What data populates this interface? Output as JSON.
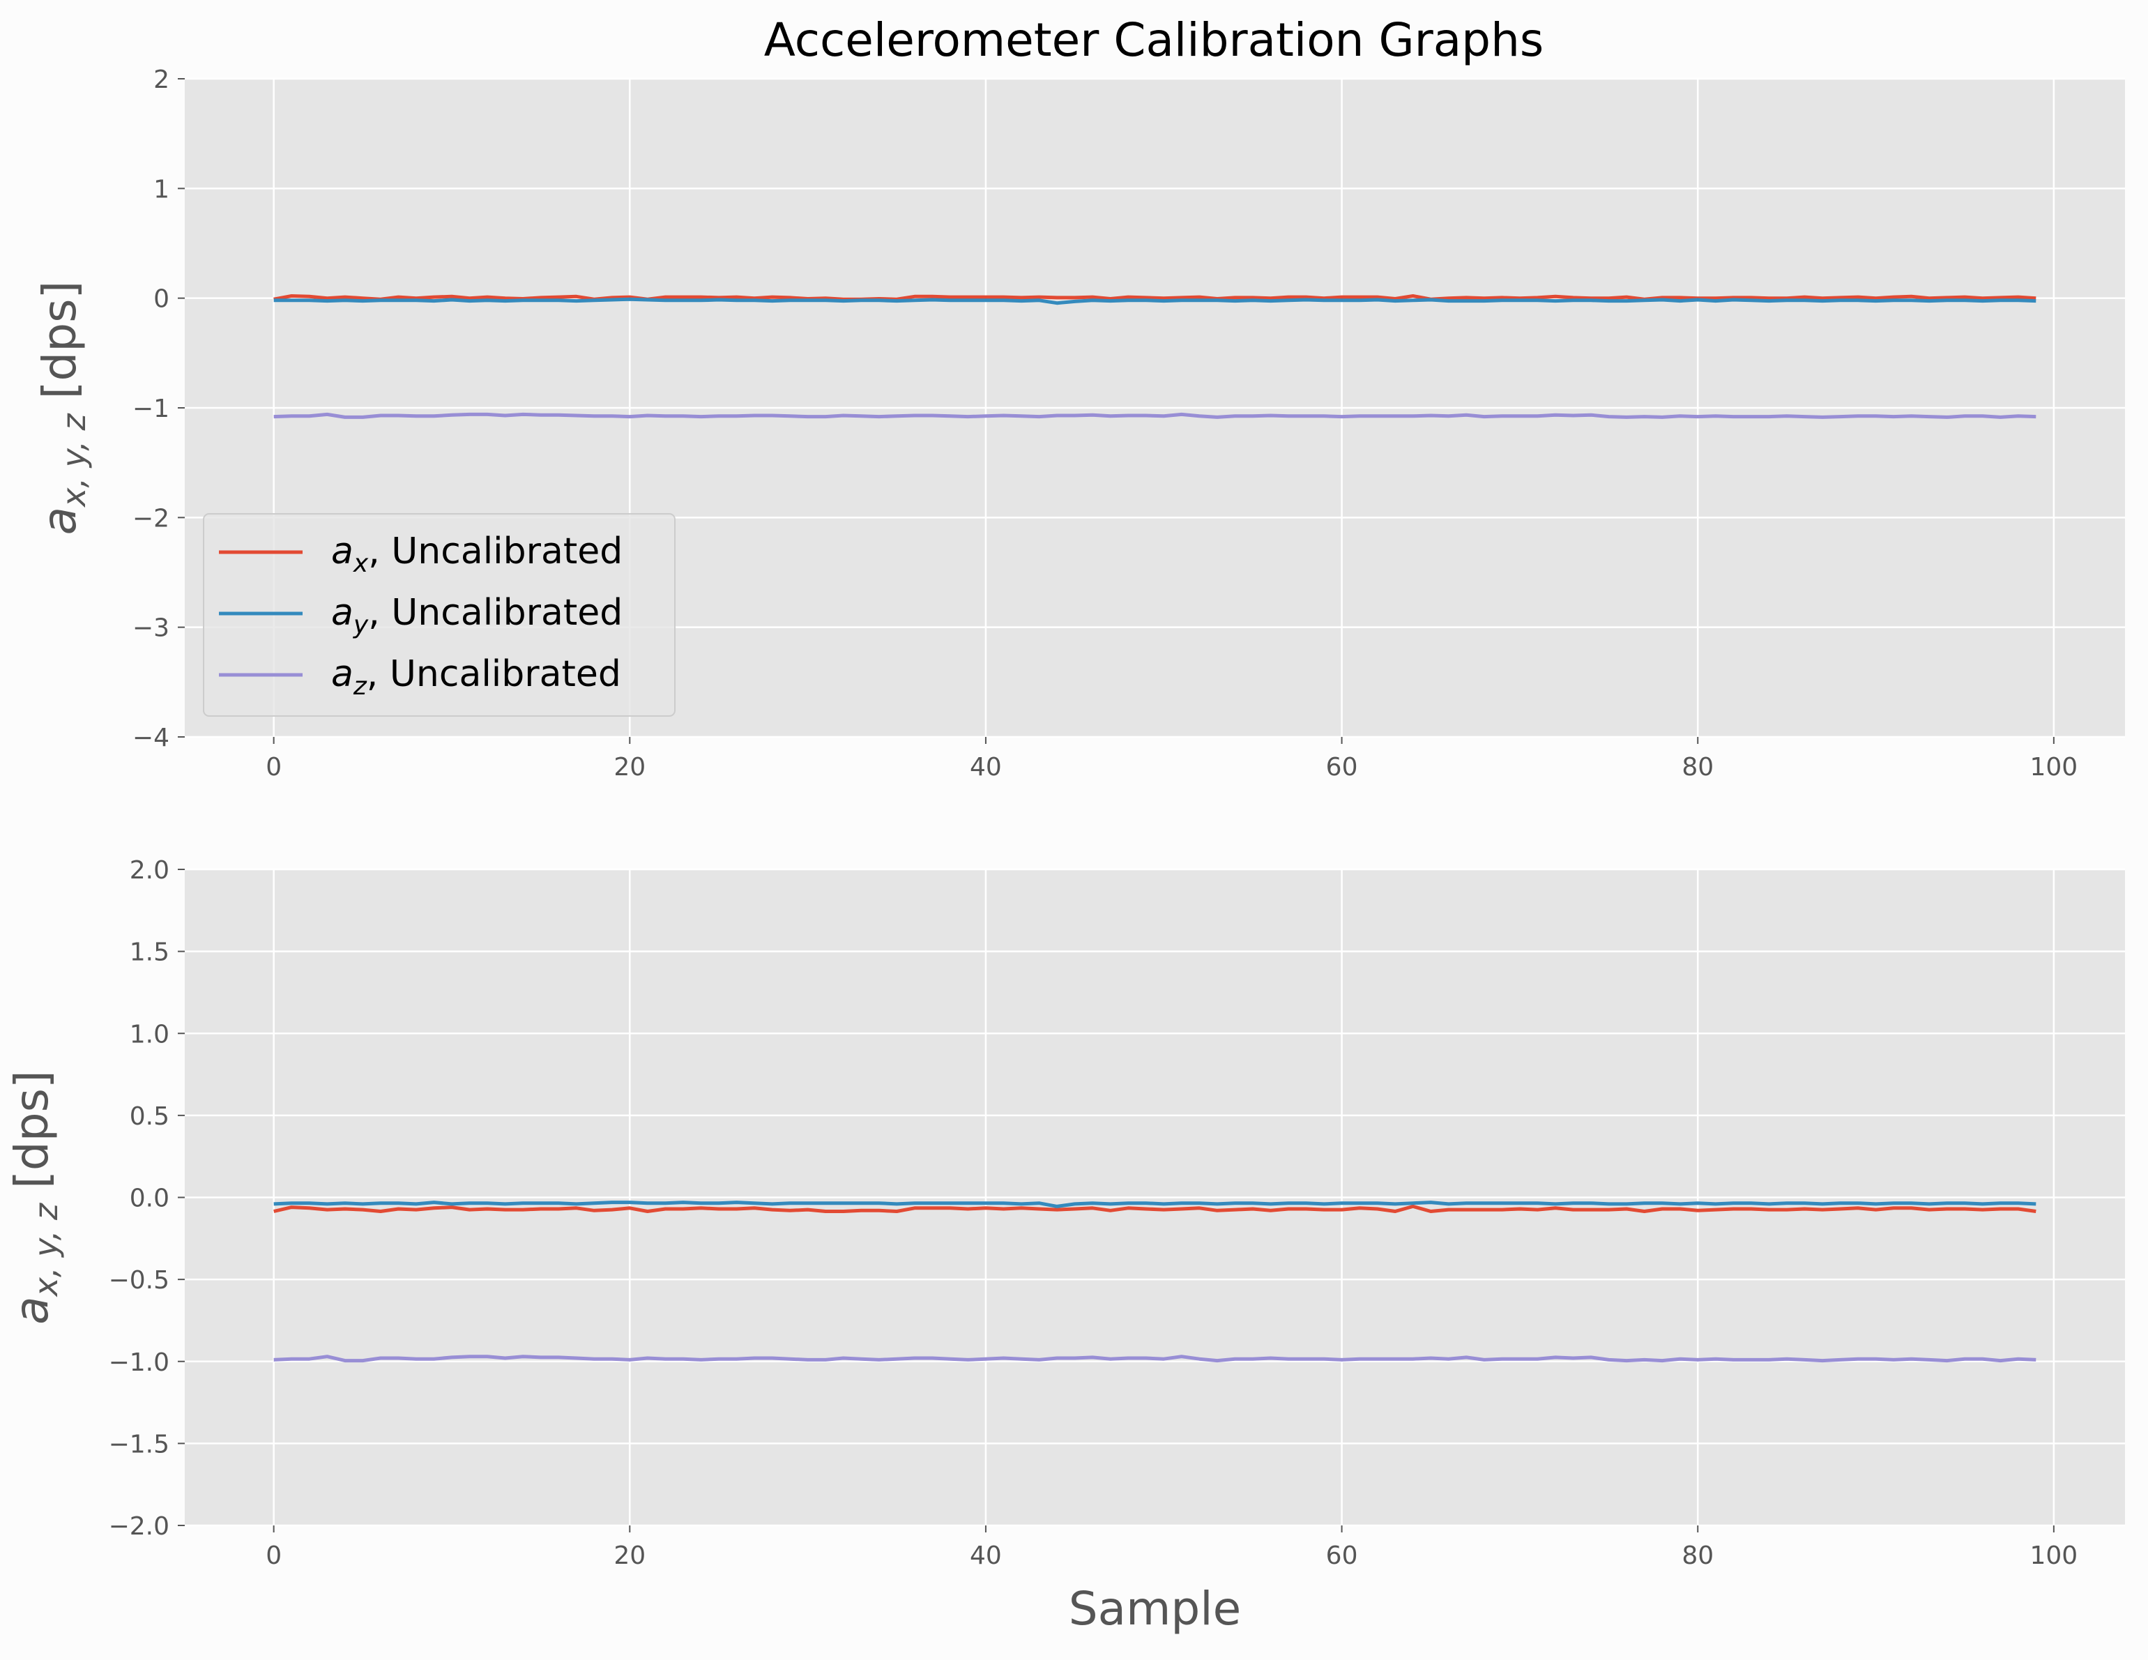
{
  "figure": {
    "title": "Accelerometer Calibration Graphs",
    "background": "#fcfcfc",
    "axes_bg": "#e5e5e5",
    "grid_color": "#ffffff",
    "tick_color": "#555555"
  },
  "chart_data": [
    {
      "type": "line",
      "ylabel": "$a_{x,y,z}$ [dps]",
      "xlabel": "",
      "xlim": [
        -5,
        104
      ],
      "ylim": [
        -4,
        2
      ],
      "xticks": [
        0,
        20,
        40,
        60,
        80,
        100
      ],
      "yticks": [
        -4,
        -3,
        -2,
        -1,
        0,
        1,
        2
      ],
      "ytick_labels": [
        "−4",
        "−3",
        "−2",
        "−1",
        "0",
        "1",
        "2"
      ],
      "grid": true,
      "legend": {
        "placement": "lower-left",
        "entries": [
          "x",
          "y",
          "z"
        ]
      },
      "series": [
        {
          "name": "a_x, Uncalibrated",
          "sub": "x",
          "color": "#e24a33",
          "values": [
            -0.01,
            0.02,
            0.015,
            0.0,
            0.01,
            0.0,
            -0.01,
            0.01,
            0.0,
            0.01,
            0.015,
            0.0,
            0.01,
            0.0,
            -0.005,
            0.005,
            0.01,
            0.015,
            -0.01,
            0.005,
            0.01,
            -0.01,
            0.01,
            0.01,
            0.01,
            0.005,
            0.01,
            0.0,
            0.01,
            0.005,
            -0.005,
            0.0,
            -0.01,
            -0.01,
            -0.005,
            -0.01,
            0.015,
            0.015,
            0.01,
            0.01,
            0.01,
            0.01,
            0.005,
            0.01,
            0.005,
            0.005,
            0.01,
            -0.005,
            0.01,
            0.005,
            0.0,
            0.005,
            0.01,
            -0.005,
            0.005,
            0.005,
            0.0,
            0.01,
            0.01,
            0.0,
            0.01,
            0.01,
            0.01,
            -0.005,
            0.02,
            -0.01,
            0.0,
            0.005,
            0.0,
            0.005,
            0.0,
            0.005,
            0.015,
            0.005,
            0.0,
            0.0,
            0.01,
            -0.01,
            0.005,
            0.005,
            0.0,
            0.0,
            0.005,
            0.005,
            0.0,
            0.0,
            0.01,
            0.0,
            0.005,
            0.01,
            0.0,
            0.01,
            0.015,
            0.0,
            0.005,
            0.01,
            0.0,
            0.005,
            0.01,
            0.0
          ]
        },
        {
          "name": "a_y, Uncalibrated",
          "sub": "y",
          "color": "#348abd",
          "values": [
            -0.02,
            -0.02,
            -0.02,
            -0.025,
            -0.02,
            -0.025,
            -0.02,
            -0.02,
            -0.02,
            -0.025,
            -0.015,
            -0.025,
            -0.02,
            -0.025,
            -0.02,
            -0.02,
            -0.02,
            -0.025,
            -0.02,
            -0.015,
            -0.01,
            -0.015,
            -0.02,
            -0.02,
            -0.02,
            -0.015,
            -0.02,
            -0.02,
            -0.025,
            -0.02,
            -0.02,
            -0.02,
            -0.025,
            -0.02,
            -0.02,
            -0.025,
            -0.02,
            -0.015,
            -0.02,
            -0.02,
            -0.02,
            -0.02,
            -0.025,
            -0.02,
            -0.045,
            -0.03,
            -0.02,
            -0.025,
            -0.02,
            -0.02,
            -0.025,
            -0.02,
            -0.02,
            -0.02,
            -0.025,
            -0.02,
            -0.025,
            -0.02,
            -0.015,
            -0.02,
            -0.02,
            -0.02,
            -0.015,
            -0.025,
            -0.02,
            -0.015,
            -0.025,
            -0.025,
            -0.025,
            -0.02,
            -0.02,
            -0.02,
            -0.025,
            -0.02,
            -0.02,
            -0.025,
            -0.025,
            -0.02,
            -0.015,
            -0.025,
            -0.015,
            -0.025,
            -0.015,
            -0.02,
            -0.025,
            -0.02,
            -0.02,
            -0.025,
            -0.02,
            -0.02,
            -0.025,
            -0.02,
            -0.02,
            -0.025,
            -0.02,
            -0.02,
            -0.025,
            -0.02,
            -0.02,
            -0.025
          ]
        },
        {
          "name": "a_z, Uncalibrated",
          "sub": "z",
          "color": "#988ed5",
          "values": [
            -1.08,
            -1.075,
            -1.075,
            -1.06,
            -1.085,
            -1.085,
            -1.07,
            -1.07,
            -1.075,
            -1.075,
            -1.065,
            -1.06,
            -1.06,
            -1.07,
            -1.06,
            -1.065,
            -1.065,
            -1.07,
            -1.075,
            -1.075,
            -1.08,
            -1.07,
            -1.075,
            -1.075,
            -1.08,
            -1.075,
            -1.075,
            -1.07,
            -1.07,
            -1.075,
            -1.08,
            -1.08,
            -1.07,
            -1.075,
            -1.08,
            -1.075,
            -1.07,
            -1.07,
            -1.075,
            -1.08,
            -1.075,
            -1.07,
            -1.075,
            -1.08,
            -1.07,
            -1.07,
            -1.065,
            -1.075,
            -1.07,
            -1.07,
            -1.075,
            -1.06,
            -1.075,
            -1.085,
            -1.075,
            -1.075,
            -1.07,
            -1.075,
            -1.075,
            -1.075,
            -1.08,
            -1.075,
            -1.075,
            -1.075,
            -1.075,
            -1.07,
            -1.075,
            -1.065,
            -1.08,
            -1.075,
            -1.075,
            -1.075,
            -1.065,
            -1.07,
            -1.065,
            -1.08,
            -1.085,
            -1.08,
            -1.085,
            -1.075,
            -1.08,
            -1.075,
            -1.08,
            -1.08,
            -1.08,
            -1.075,
            -1.08,
            -1.085,
            -1.08,
            -1.075,
            -1.075,
            -1.08,
            -1.075,
            -1.08,
            -1.085,
            -1.075,
            -1.075,
            -1.085,
            -1.075,
            -1.08
          ]
        }
      ]
    },
    {
      "type": "line",
      "ylabel": "$a_{x,y,z}$ [dps]",
      "xlabel": "Sample",
      "xlim": [
        -5,
        104
      ],
      "ylim": [
        -2,
        2
      ],
      "xticks": [
        0,
        20,
        40,
        60,
        80,
        100
      ],
      "yticks": [
        -2,
        -1.5,
        -1,
        -0.5,
        0,
        0.5,
        1,
        1.5,
        2
      ],
      "ytick_labels": [
        "−2.0",
        "−1.5",
        "−1.0",
        "−0.5",
        "0.0",
        "0.5",
        "1.0",
        "1.5",
        "2.0"
      ],
      "grid": true,
      "series": [
        {
          "color": "#e24a33",
          "values": [
            -0.085,
            -0.06,
            -0.065,
            -0.075,
            -0.07,
            -0.075,
            -0.085,
            -0.07,
            -0.075,
            -0.065,
            -0.06,
            -0.075,
            -0.07,
            -0.075,
            -0.075,
            -0.07,
            -0.07,
            -0.065,
            -0.08,
            -0.075,
            -0.065,
            -0.085,
            -0.07,
            -0.07,
            -0.065,
            -0.07,
            -0.07,
            -0.065,
            -0.075,
            -0.08,
            -0.075,
            -0.085,
            -0.085,
            -0.08,
            -0.08,
            -0.085,
            -0.065,
            -0.065,
            -0.065,
            -0.07,
            -0.065,
            -0.07,
            -0.065,
            -0.07,
            -0.075,
            -0.07,
            -0.065,
            -0.08,
            -0.065,
            -0.07,
            -0.075,
            -0.07,
            -0.065,
            -0.08,
            -0.075,
            -0.07,
            -0.08,
            -0.07,
            -0.07,
            -0.075,
            -0.075,
            -0.065,
            -0.07,
            -0.085,
            -0.055,
            -0.085,
            -0.075,
            -0.075,
            -0.075,
            -0.075,
            -0.07,
            -0.075,
            -0.065,
            -0.075,
            -0.075,
            -0.075,
            -0.07,
            -0.085,
            -0.07,
            -0.07,
            -0.08,
            -0.075,
            -0.07,
            -0.07,
            -0.075,
            -0.075,
            -0.07,
            -0.075,
            -0.07,
            -0.065,
            -0.075,
            -0.065,
            -0.065,
            -0.075,
            -0.07,
            -0.07,
            -0.075,
            -0.07,
            -0.07,
            -0.085
          ]
        },
        {
          "color": "#348abd",
          "values": [
            -0.04,
            -0.035,
            -0.035,
            -0.04,
            -0.035,
            -0.04,
            -0.035,
            -0.035,
            -0.04,
            -0.03,
            -0.04,
            -0.035,
            -0.035,
            -0.04,
            -0.035,
            -0.035,
            -0.035,
            -0.04,
            -0.035,
            -0.03,
            -0.03,
            -0.035,
            -0.035,
            -0.03,
            -0.035,
            -0.035,
            -0.03,
            -0.035,
            -0.04,
            -0.035,
            -0.035,
            -0.035,
            -0.035,
            -0.035,
            -0.035,
            -0.04,
            -0.035,
            -0.035,
            -0.035,
            -0.035,
            -0.035,
            -0.035,
            -0.04,
            -0.035,
            -0.055,
            -0.04,
            -0.035,
            -0.04,
            -0.035,
            -0.035,
            -0.04,
            -0.035,
            -0.035,
            -0.04,
            -0.035,
            -0.035,
            -0.04,
            -0.035,
            -0.035,
            -0.04,
            -0.035,
            -0.035,
            -0.035,
            -0.04,
            -0.035,
            -0.03,
            -0.04,
            -0.035,
            -0.035,
            -0.035,
            -0.035,
            -0.035,
            -0.04,
            -0.035,
            -0.035,
            -0.04,
            -0.04,
            -0.035,
            -0.035,
            -0.04,
            -0.035,
            -0.04,
            -0.035,
            -0.035,
            -0.04,
            -0.035,
            -0.035,
            -0.04,
            -0.035,
            -0.035,
            -0.04,
            -0.035,
            -0.035,
            -0.04,
            -0.035,
            -0.035,
            -0.04,
            -0.035,
            -0.035,
            -0.04
          ]
        },
        {
          "color": "#988ed5",
          "values": [
            -0.99,
            -0.985,
            -0.985,
            -0.97,
            -0.995,
            -0.995,
            -0.98,
            -0.98,
            -0.985,
            -0.985,
            -0.975,
            -0.97,
            -0.97,
            -0.98,
            -0.97,
            -0.975,
            -0.975,
            -0.98,
            -0.985,
            -0.985,
            -0.99,
            -0.98,
            -0.985,
            -0.985,
            -0.99,
            -0.985,
            -0.985,
            -0.98,
            -0.98,
            -0.985,
            -0.99,
            -0.99,
            -0.98,
            -0.985,
            -0.99,
            -0.985,
            -0.98,
            -0.98,
            -0.985,
            -0.99,
            -0.985,
            -0.98,
            -0.985,
            -0.99,
            -0.98,
            -0.98,
            -0.975,
            -0.985,
            -0.98,
            -0.98,
            -0.985,
            -0.97,
            -0.985,
            -0.995,
            -0.985,
            -0.985,
            -0.98,
            -0.985,
            -0.985,
            -0.985,
            -0.99,
            -0.985,
            -0.985,
            -0.985,
            -0.985,
            -0.98,
            -0.985,
            -0.975,
            -0.99,
            -0.985,
            -0.985,
            -0.985,
            -0.975,
            -0.98,
            -0.975,
            -0.99,
            -0.995,
            -0.99,
            -0.995,
            -0.985,
            -0.99,
            -0.985,
            -0.99,
            -0.99,
            -0.99,
            -0.985,
            -0.99,
            -0.995,
            -0.99,
            -0.985,
            -0.985,
            -0.99,
            -0.985,
            -0.99,
            -0.995,
            -0.985,
            -0.985,
            -0.995,
            -0.985,
            -0.99
          ]
        }
      ]
    }
  ]
}
